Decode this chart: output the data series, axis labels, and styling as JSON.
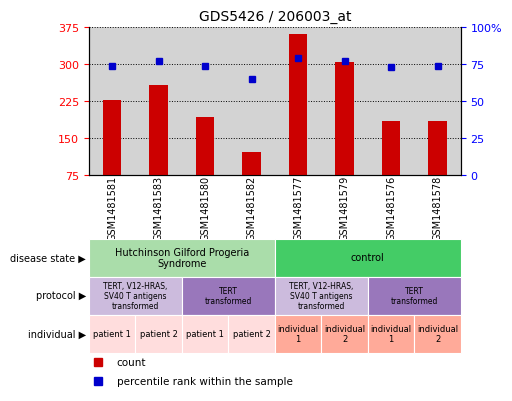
{
  "title": "GDS5426 / 206003_at",
  "samples": [
    "GSM1481581",
    "GSM1481583",
    "GSM1481580",
    "GSM1481582",
    "GSM1481577",
    "GSM1481579",
    "GSM1481576",
    "GSM1481578"
  ],
  "counts": [
    228,
    258,
    193,
    122,
    362,
    305,
    185,
    185
  ],
  "percentile_ranks": [
    74,
    77,
    74,
    65,
    79,
    77,
    73,
    74
  ],
  "ylim_left": [
    75,
    375
  ],
  "ylim_right": [
    0,
    100
  ],
  "yticks_left": [
    75,
    150,
    225,
    300,
    375
  ],
  "yticks_right": [
    0,
    25,
    50,
    75,
    100
  ],
  "ytick_labels_left": [
    "75",
    "150",
    "225",
    "300",
    "375"
  ],
  "ytick_labels_right": [
    "0",
    "25",
    "50",
    "75",
    "100%"
  ],
  "bar_color": "#cc0000",
  "dot_color": "#0000cc",
  "bg_color": "#d3d3d3",
  "disease_states": [
    {
      "label": "Hutchinson Gilford Progeria\nSyndrome",
      "start": 0,
      "end": 4,
      "color": "#aaddaa"
    },
    {
      "label": "control",
      "start": 4,
      "end": 8,
      "color": "#44cc66"
    }
  ],
  "protocols": [
    {
      "label": "TERT, V12-HRAS,\nSV40 T antigens\ntransformed",
      "start": 0,
      "end": 2,
      "color": "#ccbbdd"
    },
    {
      "label": "TERT\ntransformed",
      "start": 2,
      "end": 4,
      "color": "#9977bb"
    },
    {
      "label": "TERT, V12-HRAS,\nSV40 T antigens\ntransformed",
      "start": 4,
      "end": 6,
      "color": "#ccbbdd"
    },
    {
      "label": "TERT\ntransformed",
      "start": 6,
      "end": 8,
      "color": "#9977bb"
    }
  ],
  "individuals": [
    {
      "label": "patient 1",
      "start": 0,
      "end": 1,
      "color": "#ffdddd"
    },
    {
      "label": "patient 2",
      "start": 1,
      "end": 2,
      "color": "#ffdddd"
    },
    {
      "label": "patient 1",
      "start": 2,
      "end": 3,
      "color": "#ffdddd"
    },
    {
      "label": "patient 2",
      "start": 3,
      "end": 4,
      "color": "#ffdddd"
    },
    {
      "label": "individual\n1",
      "start": 4,
      "end": 5,
      "color": "#ffaa99"
    },
    {
      "label": "individual\n2",
      "start": 5,
      "end": 6,
      "color": "#ffaa99"
    },
    {
      "label": "individual\n1",
      "start": 6,
      "end": 7,
      "color": "#ffaa99"
    },
    {
      "label": "individual\n2",
      "start": 7,
      "end": 8,
      "color": "#ffaa99"
    }
  ],
  "row_labels": [
    "disease state",
    "protocol",
    "individual"
  ],
  "legend_items": [
    {
      "label": "count",
      "color": "#cc0000"
    },
    {
      "label": "percentile rank within the sample",
      "color": "#0000cc"
    }
  ]
}
